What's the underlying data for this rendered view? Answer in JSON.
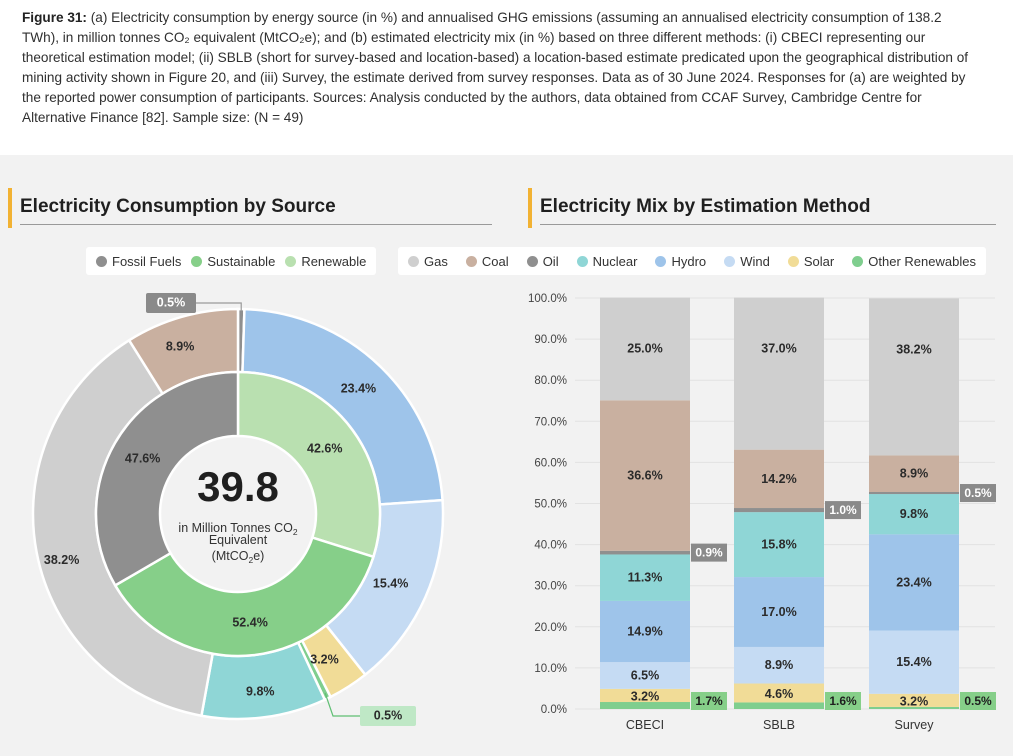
{
  "caption": {
    "label": "Figure 31:",
    "text": "(a) Electricity consumption by energy source (in %) and annualised GHG emissions (assuming an annualised electricity consumption of 138.2 TWh), in million tonnes CO₂ equivalent (MtCO₂e); and (b) estimated electricity mix (in %) based on three different methods: (i) CBECI representing our theoretical estimation model; (ii) SBLB (short for survey-based and location-based) a location-based estimate predicated upon the geographical distribution of mining activity shown in Figure 20, and (iii) Survey, the estimate derived from survey responses. Data as of 30 June 2024. Responses for (a) are weighted by the reported power consumption of participants. Sources: Analysis conducted by the authors, data obtained from CCAF Survey, Cambridge Centre for Alternative Finance [82]. Sample size: (N = 49)"
  },
  "colors": {
    "Gas": "#cfcfcf",
    "Coal": "#c9b0a0",
    "Oil": "#8f8f8f",
    "Nuclear": "#8fd6d6",
    "Hydro": "#9ec4ea",
    "Wind": "#c5dbf3",
    "Solar": "#f1dc97",
    "Other Renewables": "#7fce8e",
    "Fossil Fuels": "#8f8f8f",
    "Sustainable": "#86cf89",
    "Renewable": "#b9e0b0"
  },
  "chart_data": [
    {
      "type": "pie",
      "title": "Electricity Consumption by Source",
      "center": {
        "value": "39.8",
        "line1": "in Million Tonnes CO",
        "line1_sub": "2",
        "line2": "Equivalent",
        "line3": "(MtCO",
        "line3_sub": "2",
        "line3_end": "e)"
      },
      "legend": [
        "Fossil Fuels",
        "Sustainable",
        "Renewable"
      ],
      "inner": [
        {
          "name": "Renewable",
          "value": 42.6
        },
        {
          "name": "Sustainable",
          "value": 52.4
        },
        {
          "name": "Fossil Fuels",
          "value": 47.6
        }
      ],
      "outer": [
        {
          "name": "Oil",
          "value": 0.5
        },
        {
          "name": "Hydro",
          "value": 23.4
        },
        {
          "name": "Wind",
          "value": 15.4
        },
        {
          "name": "Solar",
          "value": 3.2
        },
        {
          "name": "Other Renewables",
          "value": 0.5
        },
        {
          "name": "Nuclear",
          "value": 9.8
        },
        {
          "name": "Gas",
          "value": 38.2
        },
        {
          "name": "Coal",
          "value": 8.9
        }
      ]
    },
    {
      "type": "bar",
      "stacked": true,
      "title": "Electricity Mix by Estimation Method",
      "categories": [
        "CBECI",
        "SBLB",
        "Survey"
      ],
      "ylim": [
        0,
        100
      ],
      "yticks": [
        "0.0%",
        "10.0%",
        "20.0%",
        "30.0%",
        "40.0%",
        "50.0%",
        "60.0%",
        "70.0%",
        "80.0%",
        "90.0%",
        "100.0%"
      ],
      "legend": [
        "Gas",
        "Coal",
        "Oil",
        "Nuclear",
        "Hydro",
        "Wind",
        "Solar",
        "Other Renewables"
      ],
      "series": [
        {
          "name": "Other Renewables",
          "values": [
            1.7,
            1.6,
            0.5
          ]
        },
        {
          "name": "Solar",
          "values": [
            3.2,
            4.6,
            3.2
          ]
        },
        {
          "name": "Wind",
          "values": [
            6.5,
            8.9,
            15.4
          ]
        },
        {
          "name": "Hydro",
          "values": [
            14.9,
            17.0,
            23.4
          ]
        },
        {
          "name": "Nuclear",
          "values": [
            11.3,
            15.8,
            9.8
          ]
        },
        {
          "name": "Oil",
          "values": [
            0.9,
            1.0,
            0.5
          ]
        },
        {
          "name": "Coal",
          "values": [
            36.6,
            14.2,
            8.9
          ]
        },
        {
          "name": "Gas",
          "values": [
            25.0,
            37.0,
            38.2
          ]
        }
      ],
      "labels": [
        {
          "name": "Other Renewables",
          "texts": [
            "1.7%",
            "1.6%",
            "0.5%"
          ]
        },
        {
          "name": "Solar",
          "texts": [
            "3.2%",
            "4.6%",
            "3.2%"
          ]
        },
        {
          "name": "Wind",
          "texts": [
            "6.5%",
            "8.9%",
            "15.4%"
          ]
        },
        {
          "name": "Hydro",
          "texts": [
            "14.9%",
            "17.0%",
            "23.4%"
          ]
        },
        {
          "name": "Nuclear",
          "texts": [
            "11.3%",
            "15.8%",
            "9.8%"
          ]
        },
        {
          "name": "Oil",
          "texts": [
            "0.9%",
            "1.0%",
            "0.5%"
          ]
        },
        {
          "name": "Coal",
          "texts": [
            "36.6%",
            "14.2%",
            "8.9%"
          ]
        },
        {
          "name": "Gas",
          "texts": [
            "25.0%",
            "37.0%",
            "38.2%"
          ]
        }
      ]
    }
  ],
  "donut_labels": {
    "outer": [
      "0.5%",
      "23.4%",
      "15.4%",
      "3.2%",
      "0.5%",
      "9.8%",
      "38.2%",
      "8.9%"
    ],
    "inner": [
      "42.6%",
      "52.4%",
      "47.6%"
    ]
  }
}
